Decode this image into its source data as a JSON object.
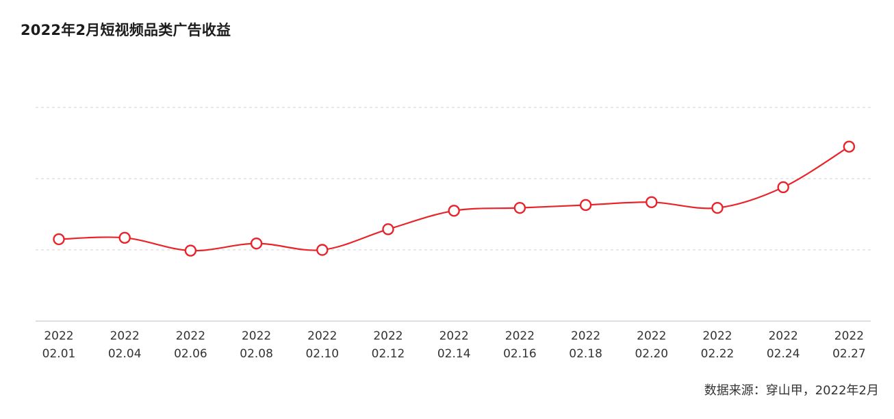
{
  "title": "2022年2月短视频品类广告收益",
  "source": "数据来源：穿山甲，2022年2月",
  "colors": {
    "line": "#e8242a",
    "marker_fill": "#ffffff",
    "gridline": "#d9d9d9",
    "axis": "#cfd3dc",
    "tick_text": "#333333"
  },
  "chart_data": {
    "type": "line",
    "title": "2022年2月短视频品类广告收益",
    "xlabel": "",
    "ylabel": "",
    "categories": [
      [
        "2022",
        "02.01"
      ],
      [
        "2022",
        "02.04"
      ],
      [
        "2022",
        "02.06"
      ],
      [
        "2022",
        "02.08"
      ],
      [
        "2022",
        "02.10"
      ],
      [
        "2022",
        "02.12"
      ],
      [
        "2022",
        "02.14"
      ],
      [
        "2022",
        "02.16"
      ],
      [
        "2022",
        "02.18"
      ],
      [
        "2022",
        "02.20"
      ],
      [
        "2022",
        "02.22"
      ],
      [
        "2022",
        "02.24"
      ],
      [
        "2022",
        "02.27"
      ]
    ],
    "series": [
      {
        "values": [
          1.15,
          1.17,
          0.99,
          1.09,
          1.0,
          1.29,
          1.55,
          1.59,
          1.63,
          1.67,
          1.59,
          1.88,
          2.45
        ]
      }
    ],
    "ylim": [
      0,
      3
    ],
    "y_gridlines": [
      1,
      2,
      3
    ],
    "y_tick_labels_shown": false,
    "grid": "dashed horizontal",
    "legend": "none",
    "smooth": true
  }
}
